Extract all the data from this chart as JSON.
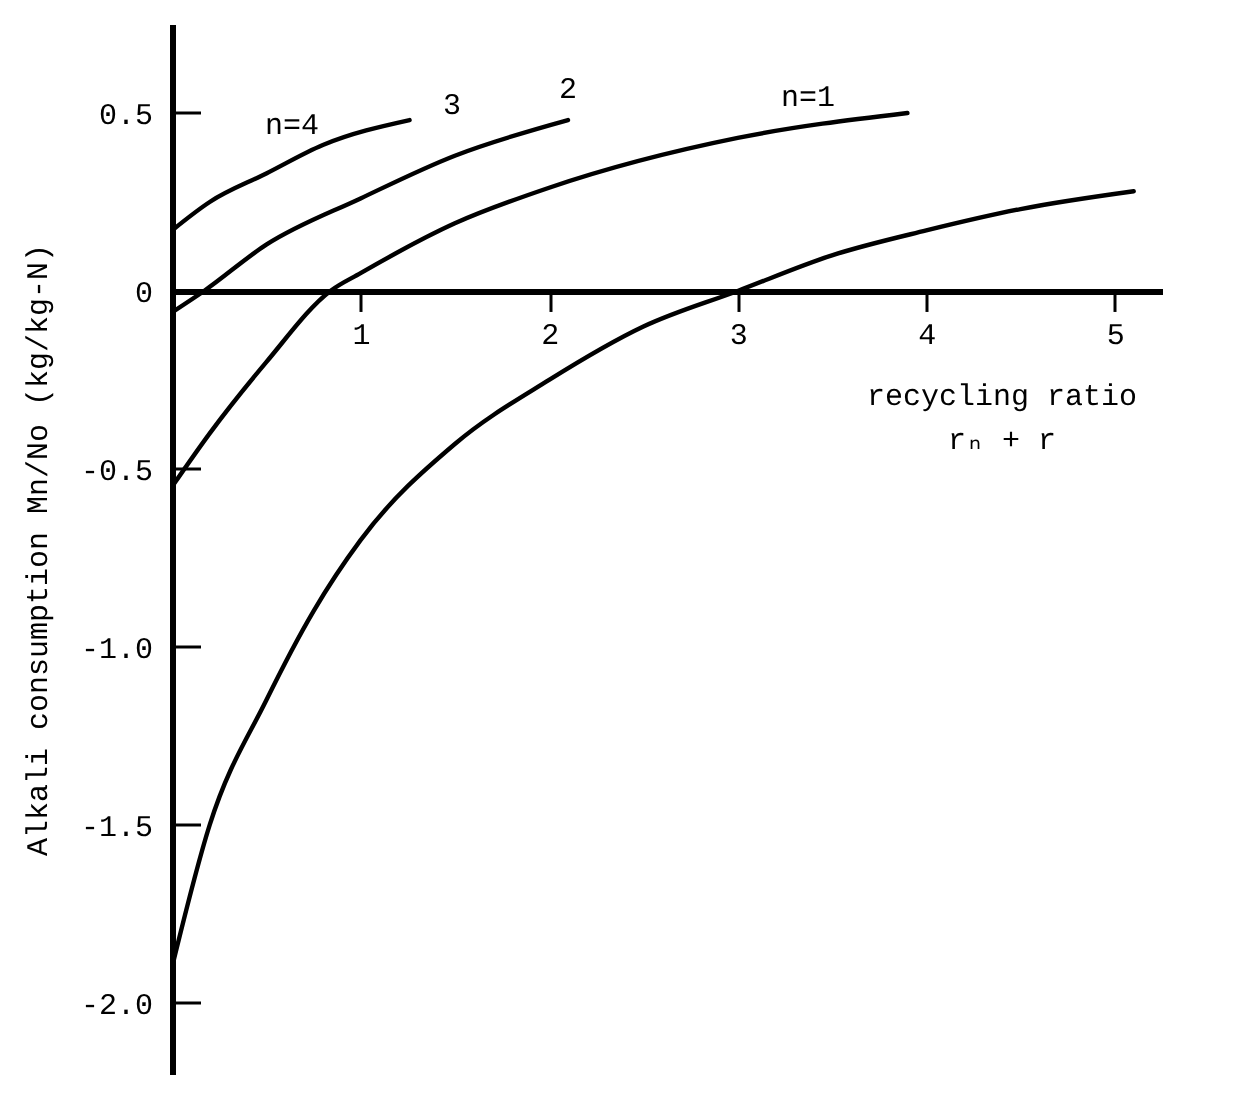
{
  "chart_data": {
    "type": "line",
    "xlabel": "recycling ratio\nrₙ + r",
    "ylabel": "Alkali consumption Mn/No (kg/kg-N)",
    "xlim": [
      0,
      5.25
    ],
    "ylim": [
      -2.2,
      0.75
    ],
    "xticks": [
      1,
      2,
      3,
      4,
      5
    ],
    "yticks": [
      {
        "value": 0.5,
        "label": "0.5"
      },
      {
        "value": 0,
        "label": "0"
      },
      {
        "value": -0.5,
        "label": "-0.5"
      },
      {
        "value": -1,
        "label": "-1.0"
      },
      {
        "value": -1.5,
        "label": "-1.5"
      },
      {
        "value": -2,
        "label": "-2.0"
      }
    ],
    "grid": false,
    "marker": "none",
    "line_style": "solid",
    "series": [
      {
        "color": "#000000",
        "x": [
          0,
          0.2,
          0.5,
          0.8,
          1.26
        ],
        "values": [
          0.17,
          0.25,
          0.33,
          0.41,
          0.48
        ]
      },
      {
        "color": "#000000",
        "x": [
          0,
          0.17,
          0.5,
          1,
          1.5,
          2.1
        ],
        "values": [
          -0.06,
          0,
          0.13,
          0.26,
          0.38,
          0.48
        ]
      },
      {
        "color": "#000000",
        "x": [
          0,
          0.2,
          0.5,
          0.84,
          1,
          1.5,
          2,
          3,
          3.9
        ],
        "values": [
          -0.55,
          -0.4,
          -0.2,
          0,
          0.05,
          0.19,
          0.29,
          0.43,
          0.5
        ]
      },
      {
        "color": "#000000",
        "x": [
          0,
          0.2,
          0.5,
          0.75,
          1,
          1.5,
          2,
          2.5,
          3,
          3.5,
          4,
          4.5,
          5.1
        ],
        "values": [
          -1.9,
          -1.5,
          -1.15,
          -0.9,
          -0.7,
          -0.43,
          -0.25,
          -0.1,
          0,
          0.1,
          0.17,
          0.23,
          0.28
        ]
      }
    ],
    "annotations": [
      "n=4",
      "3",
      "2",
      "n=1"
    ]
  }
}
